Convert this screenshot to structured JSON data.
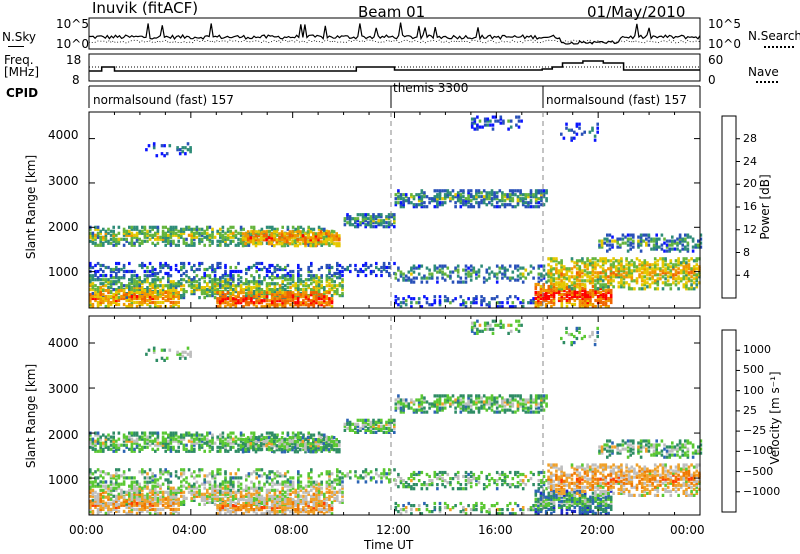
{
  "header": {
    "radar": "Inuvik (fitACF)",
    "beam": "Beam 01",
    "date": "01/May/2010"
  },
  "nsky_panel": {
    "left_label": "N.Sky",
    "right_label": "N.Search",
    "ticks_left": [
      "10^5",
      "10^0"
    ],
    "ticks_right": [
      "10^5",
      "10^0"
    ]
  },
  "freq_panel": {
    "left_label_1": "Freq.",
    "left_label_2": "[MHz]",
    "left_ticks": [
      "18",
      "8"
    ],
    "right_label": "Nave",
    "right_ticks": [
      "60",
      "0"
    ]
  },
  "cpid": {
    "label": "CPID",
    "segments": [
      "normalsound (fast) 157",
      "themis 3300",
      "normalsound (fast) 157"
    ]
  },
  "power_panel": {
    "ylabel": "Slant Range [km]",
    "yticks": [
      "4000",
      "3000",
      "2000",
      "1000"
    ],
    "colorbar_label": "Power [dB]",
    "colorbar_ticks": [
      "28",
      "24",
      "20",
      "16",
      "12",
      "8",
      "4"
    ]
  },
  "velocity_panel": {
    "ylabel": "Slant Range [km]",
    "yticks": [
      "4000",
      "3000",
      "2000",
      "1000"
    ],
    "colorbar_label": "Velocity [m s⁻¹]",
    "colorbar_ticks": [
      "1000",
      "500",
      "100",
      "25",
      "−25",
      "−100",
      "−500",
      "−1000"
    ]
  },
  "xaxis": {
    "label": "Time UT",
    "ticks": [
      "00:00",
      "04:00",
      "08:00",
      "12:00",
      "16:00",
      "20:00",
      "00:00"
    ]
  },
  "colors": {
    "power": [
      "#0a14ff",
      "#2850b8",
      "#2e8c78",
      "#64b43c",
      "#e6c800",
      "#f09600",
      "#f06400",
      "#ff0000"
    ],
    "velocity": [
      "#1e28c8",
      "#2c64b4",
      "#2e8c64",
      "#5ac832",
      "#bebebe",
      "#f0a028",
      "#f07800",
      "#ff3c00",
      "#ff0000"
    ]
  },
  "chart_data": {
    "type": "heatmap",
    "x_range_hours": [
      0,
      24
    ],
    "y_range_km": [
      180,
      4600
    ],
    "cpid_changes_hours": [
      12.0,
      18.0
    ]
  }
}
